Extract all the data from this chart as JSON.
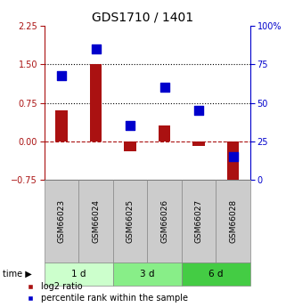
{
  "title": "GDS1710 / 1401",
  "samples": [
    "GSM66023",
    "GSM66024",
    "GSM66025",
    "GSM66026",
    "GSM66027",
    "GSM66028"
  ],
  "log2_ratio": [
    0.6,
    1.5,
    -0.2,
    0.3,
    -0.1,
    -0.85
  ],
  "percentile_rank": [
    68,
    85,
    35,
    60,
    45,
    15
  ],
  "bar_color": "#aa1111",
  "dot_color": "#0000cc",
  "ylim_left": [
    -0.75,
    2.25
  ],
  "ylim_right": [
    0,
    100
  ],
  "yticks_left": [
    -0.75,
    0,
    0.75,
    1.5,
    2.25
  ],
  "yticks_right": [
    0,
    25,
    50,
    75,
    100
  ],
  "hlines_dotted": [
    1.5,
    0.75
  ],
  "hline_dashed": 0,
  "time_groups": [
    {
      "label": "1 d",
      "n": 2,
      "color": "#ccffcc"
    },
    {
      "label": "3 d",
      "n": 2,
      "color": "#88ee88"
    },
    {
      "label": "6 d",
      "n": 2,
      "color": "#44cc44"
    }
  ],
  "legend_bar_label": "log2 ratio",
  "legend_dot_label": "percentile rank within the sample",
  "bar_width": 0.35,
  "dot_size": 45,
  "title_fontsize": 10,
  "tick_fontsize": 7,
  "label_fontsize": 7,
  "sample_label_fontsize": 6.5,
  "time_label_fontsize": 7.5
}
